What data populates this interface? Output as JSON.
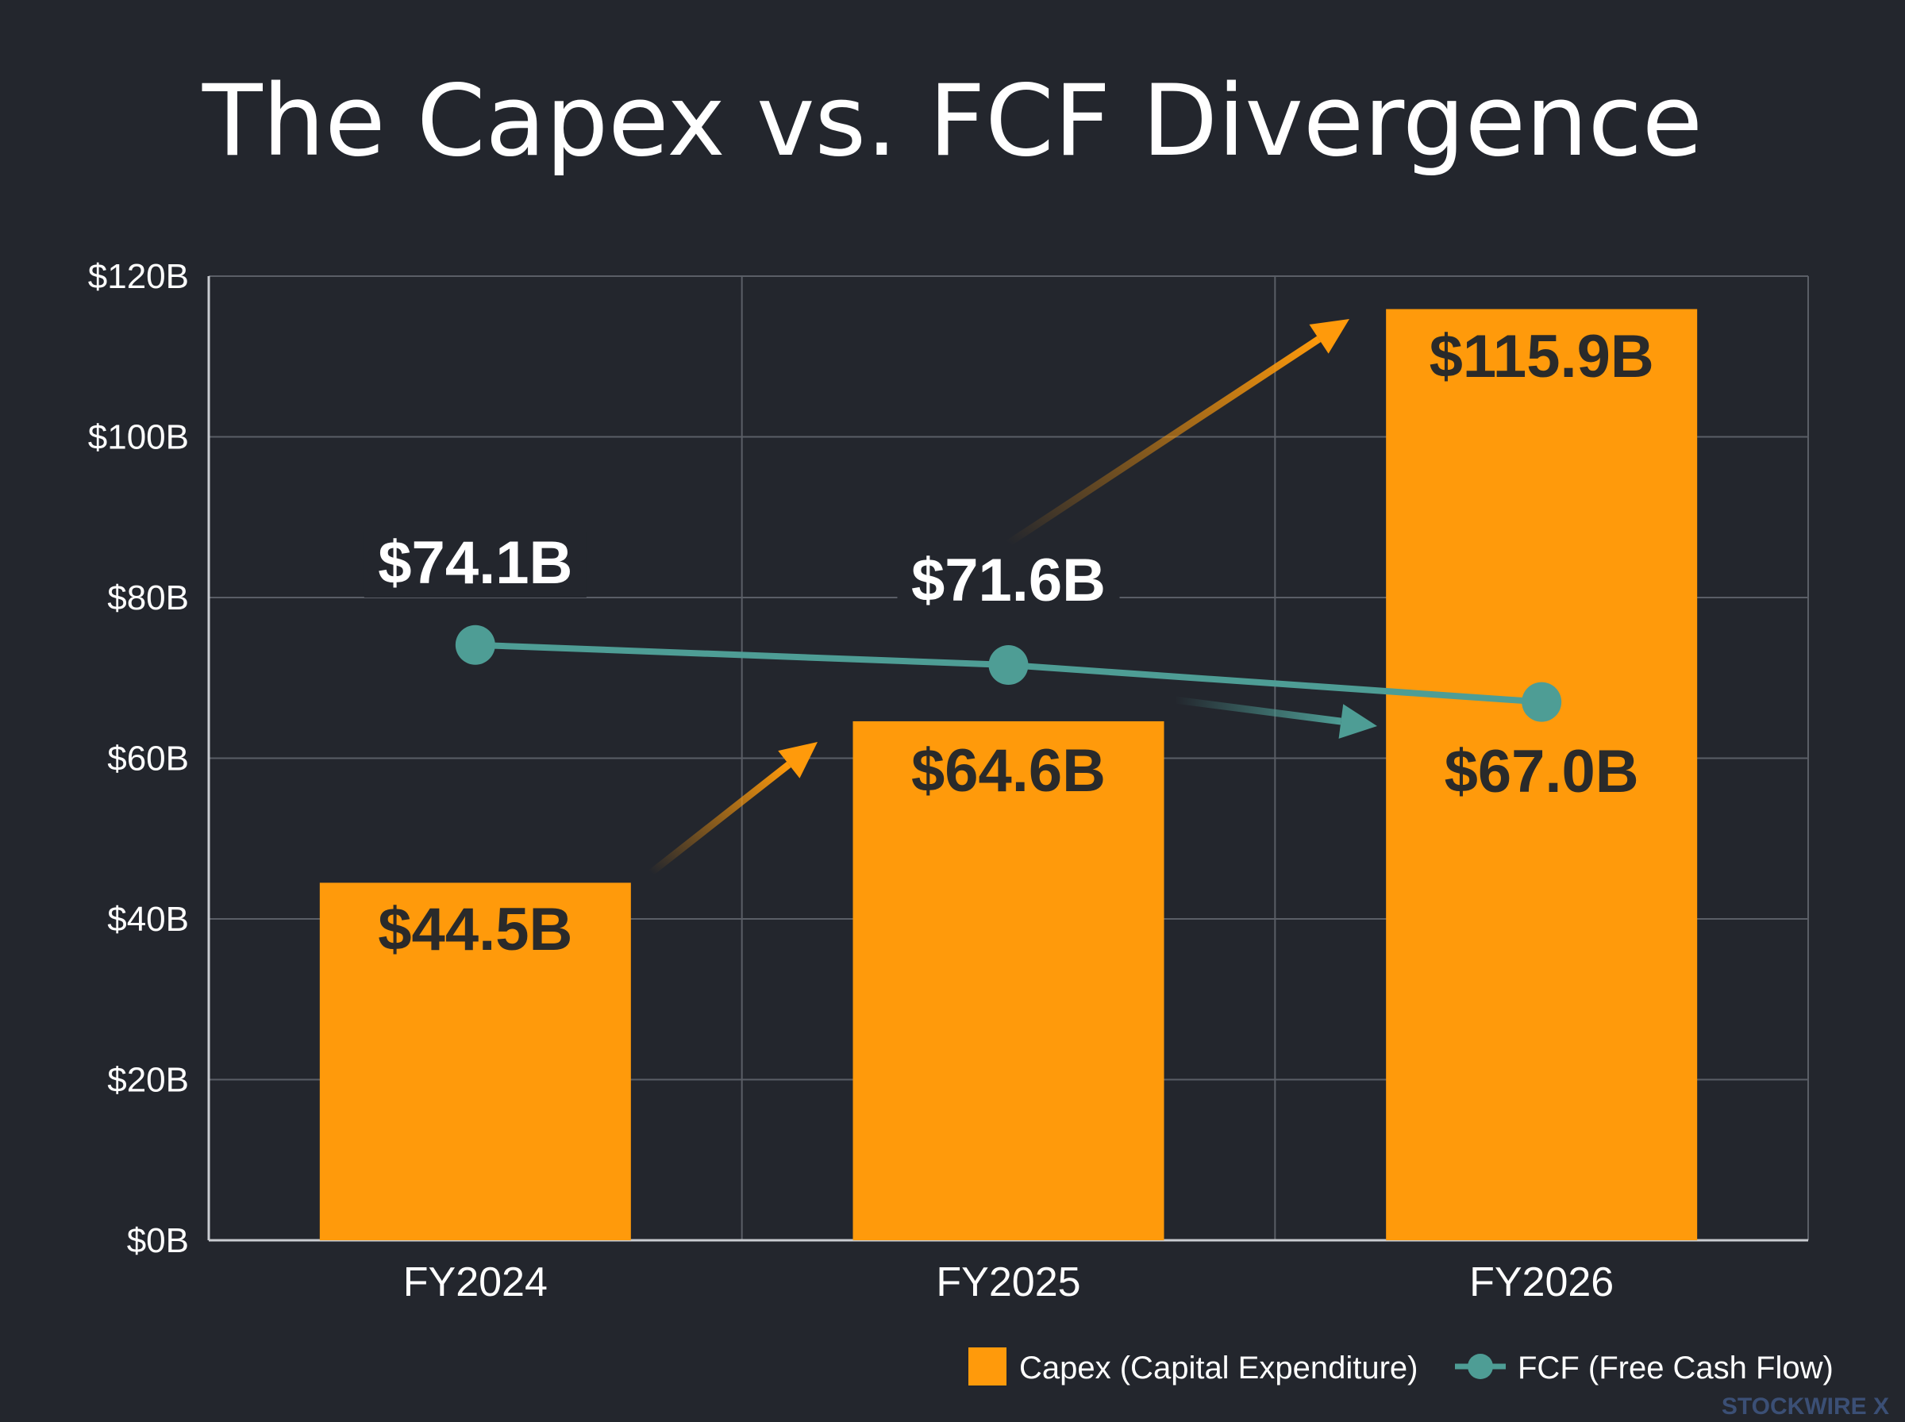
{
  "title": "The Capex vs. FCF Divergence",
  "watermark": "STOCKWIRE X",
  "colors": {
    "background": "#23262d",
    "capex": "#ff9a0b",
    "fcf": "#4e9d95",
    "grid": "#5a5e66",
    "axis": "#c9ccd1",
    "text": "#ffffff",
    "bar_label": "#2a2a2a",
    "watermark": "#3b4f75"
  },
  "chart_data": {
    "type": "bar",
    "categories": [
      "FY2024",
      "FY2025",
      "FY2026"
    ],
    "ylim": [
      0,
      120
    ],
    "yticks": [
      0,
      20,
      40,
      60,
      80,
      100,
      120
    ],
    "ytick_labels": [
      "$0B",
      "$20B",
      "$40B",
      "$60B",
      "$80B",
      "$100B",
      "$120B"
    ],
    "grid": true,
    "legend_position": "bottom-right",
    "series": [
      {
        "name": "Capex (Capital Expenditure)",
        "type": "bar",
        "values": [
          44.5,
          64.6,
          115.9
        ],
        "labels": [
          "$44.5B",
          "$64.6B",
          "$115.9B"
        ],
        "color": "#ff9a0b"
      },
      {
        "name": "FCF (Free Cash Flow)",
        "type": "line",
        "values": [
          74.1,
          71.6,
          67.0
        ],
        "labels": [
          "$74.1B",
          "$71.6B",
          "$67.0B"
        ],
        "color": "#4e9d95"
      }
    ]
  }
}
